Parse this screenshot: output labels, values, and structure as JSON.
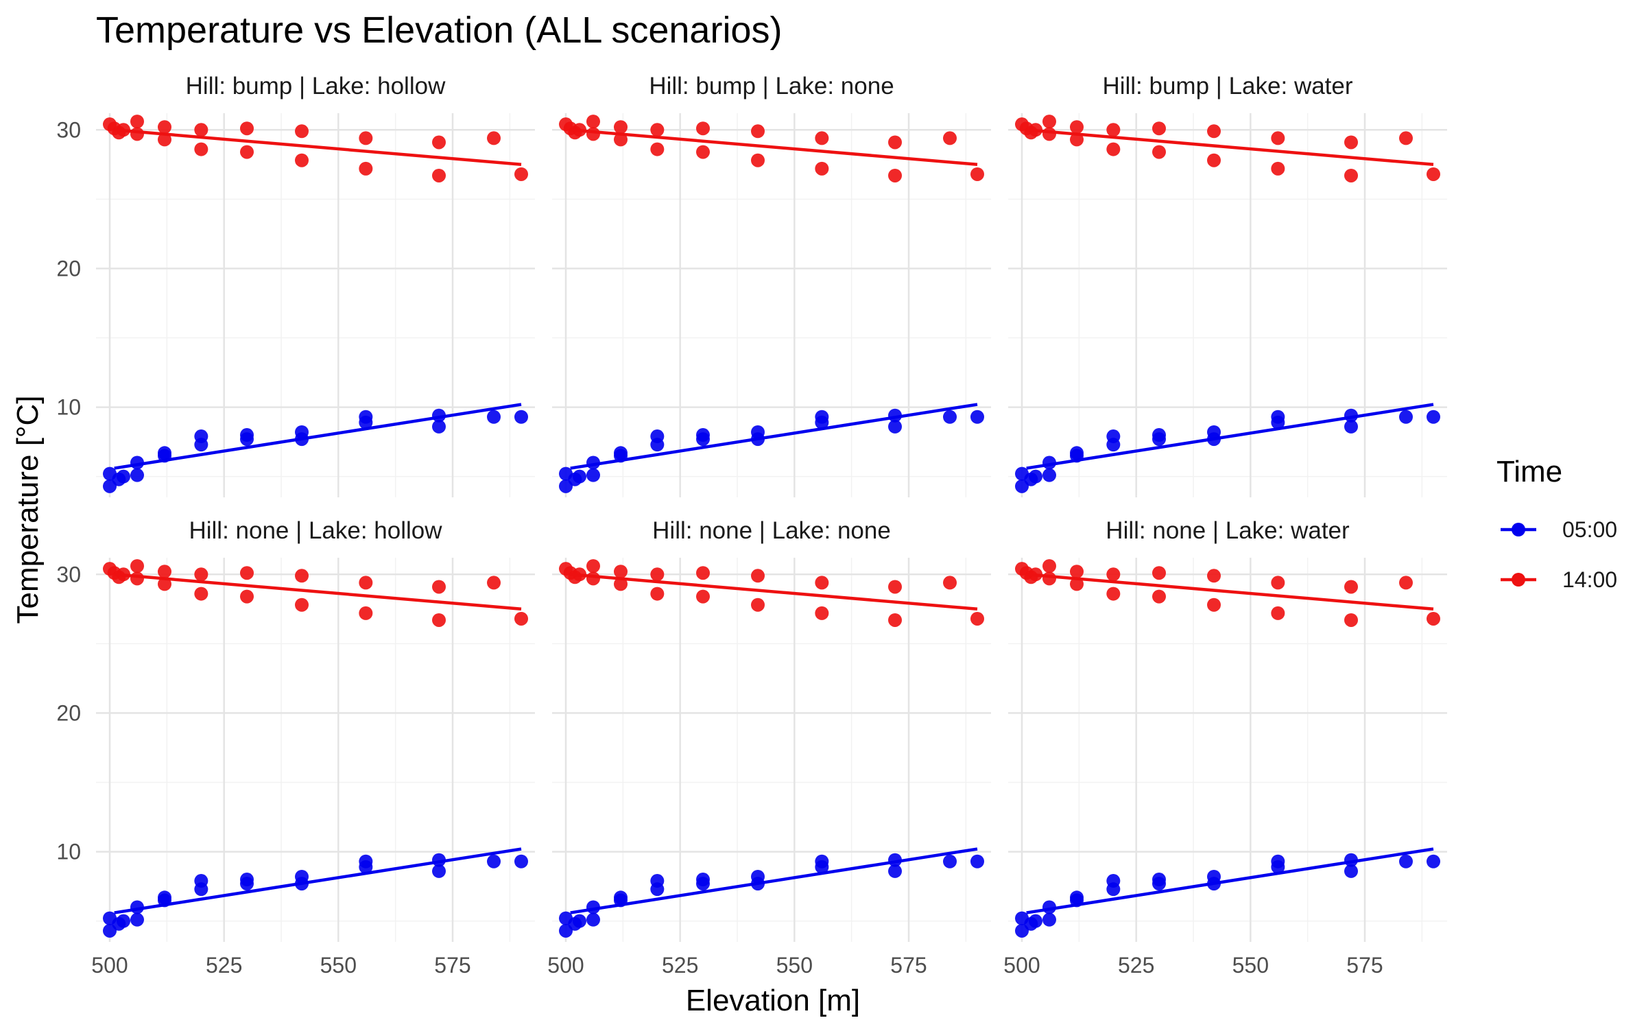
{
  "chart_data": {
    "type": "scatter",
    "title": "Temperature vs Elevation (ALL scenarios)",
    "xlabel": "Elevation [m]",
    "ylabel": "Temperature [°C]",
    "xlim": [
      497,
      593
    ],
    "ylim": [
      3.5,
      31.2
    ],
    "x_ticks": [
      500,
      525,
      550,
      575
    ],
    "y_ticks": [
      10,
      20,
      30
    ],
    "grid": true,
    "legend": {
      "title": "Time",
      "position": "right",
      "entries": [
        {
          "label": "05:00",
          "color": "#0000ee"
        },
        {
          "label": "14:00",
          "color": "#ee1111"
        }
      ]
    },
    "facets": [
      {
        "label": "Hill: bump | Lake: hollow"
      },
      {
        "label": "Hill: bump | Lake: none"
      },
      {
        "label": "Hill: bump | Lake: water"
      },
      {
        "label": "Hill: none | Lake: hollow"
      },
      {
        "label": "Hill: none | Lake: none"
      },
      {
        "label": "Hill: none | Lake: water"
      }
    ],
    "series": [
      {
        "name": "05:00",
        "color": "#0000ee",
        "points": [
          [
            500,
            5.2
          ],
          [
            500,
            4.3
          ],
          [
            502,
            4.8
          ],
          [
            503,
            5.0
          ],
          [
            506,
            6.0
          ],
          [
            506,
            5.1
          ],
          [
            512,
            6.7
          ],
          [
            512,
            6.5
          ],
          [
            520,
            7.9
          ],
          [
            520,
            7.3
          ],
          [
            530,
            8.0
          ],
          [
            530,
            7.7
          ],
          [
            542,
            8.2
          ],
          [
            542,
            7.7
          ],
          [
            556,
            9.3
          ],
          [
            556,
            8.9
          ],
          [
            572,
            9.4
          ],
          [
            572,
            8.6
          ],
          [
            584,
            9.3
          ],
          [
            590,
            9.3
          ]
        ],
        "trend": [
          [
            501,
            5.6
          ],
          [
            590,
            10.2
          ]
        ]
      },
      {
        "name": "14:00",
        "color": "#ee1111",
        "points": [
          [
            500,
            30.4
          ],
          [
            501,
            30.1
          ],
          [
            502,
            29.8
          ],
          [
            503,
            30.0
          ],
          [
            506,
            30.6
          ],
          [
            506,
            29.7
          ],
          [
            512,
            30.2
          ],
          [
            512,
            29.3
          ],
          [
            520,
            30.0
          ],
          [
            520,
            28.6
          ],
          [
            530,
            30.1
          ],
          [
            530,
            28.4
          ],
          [
            542,
            29.9
          ],
          [
            542,
            27.8
          ],
          [
            556,
            29.4
          ],
          [
            556,
            27.2
          ],
          [
            572,
            29.1
          ],
          [
            572,
            26.7
          ],
          [
            584,
            29.4
          ],
          [
            590,
            26.8
          ]
        ],
        "trend": [
          [
            501,
            30.0
          ],
          [
            590,
            27.5
          ]
        ]
      }
    ]
  }
}
